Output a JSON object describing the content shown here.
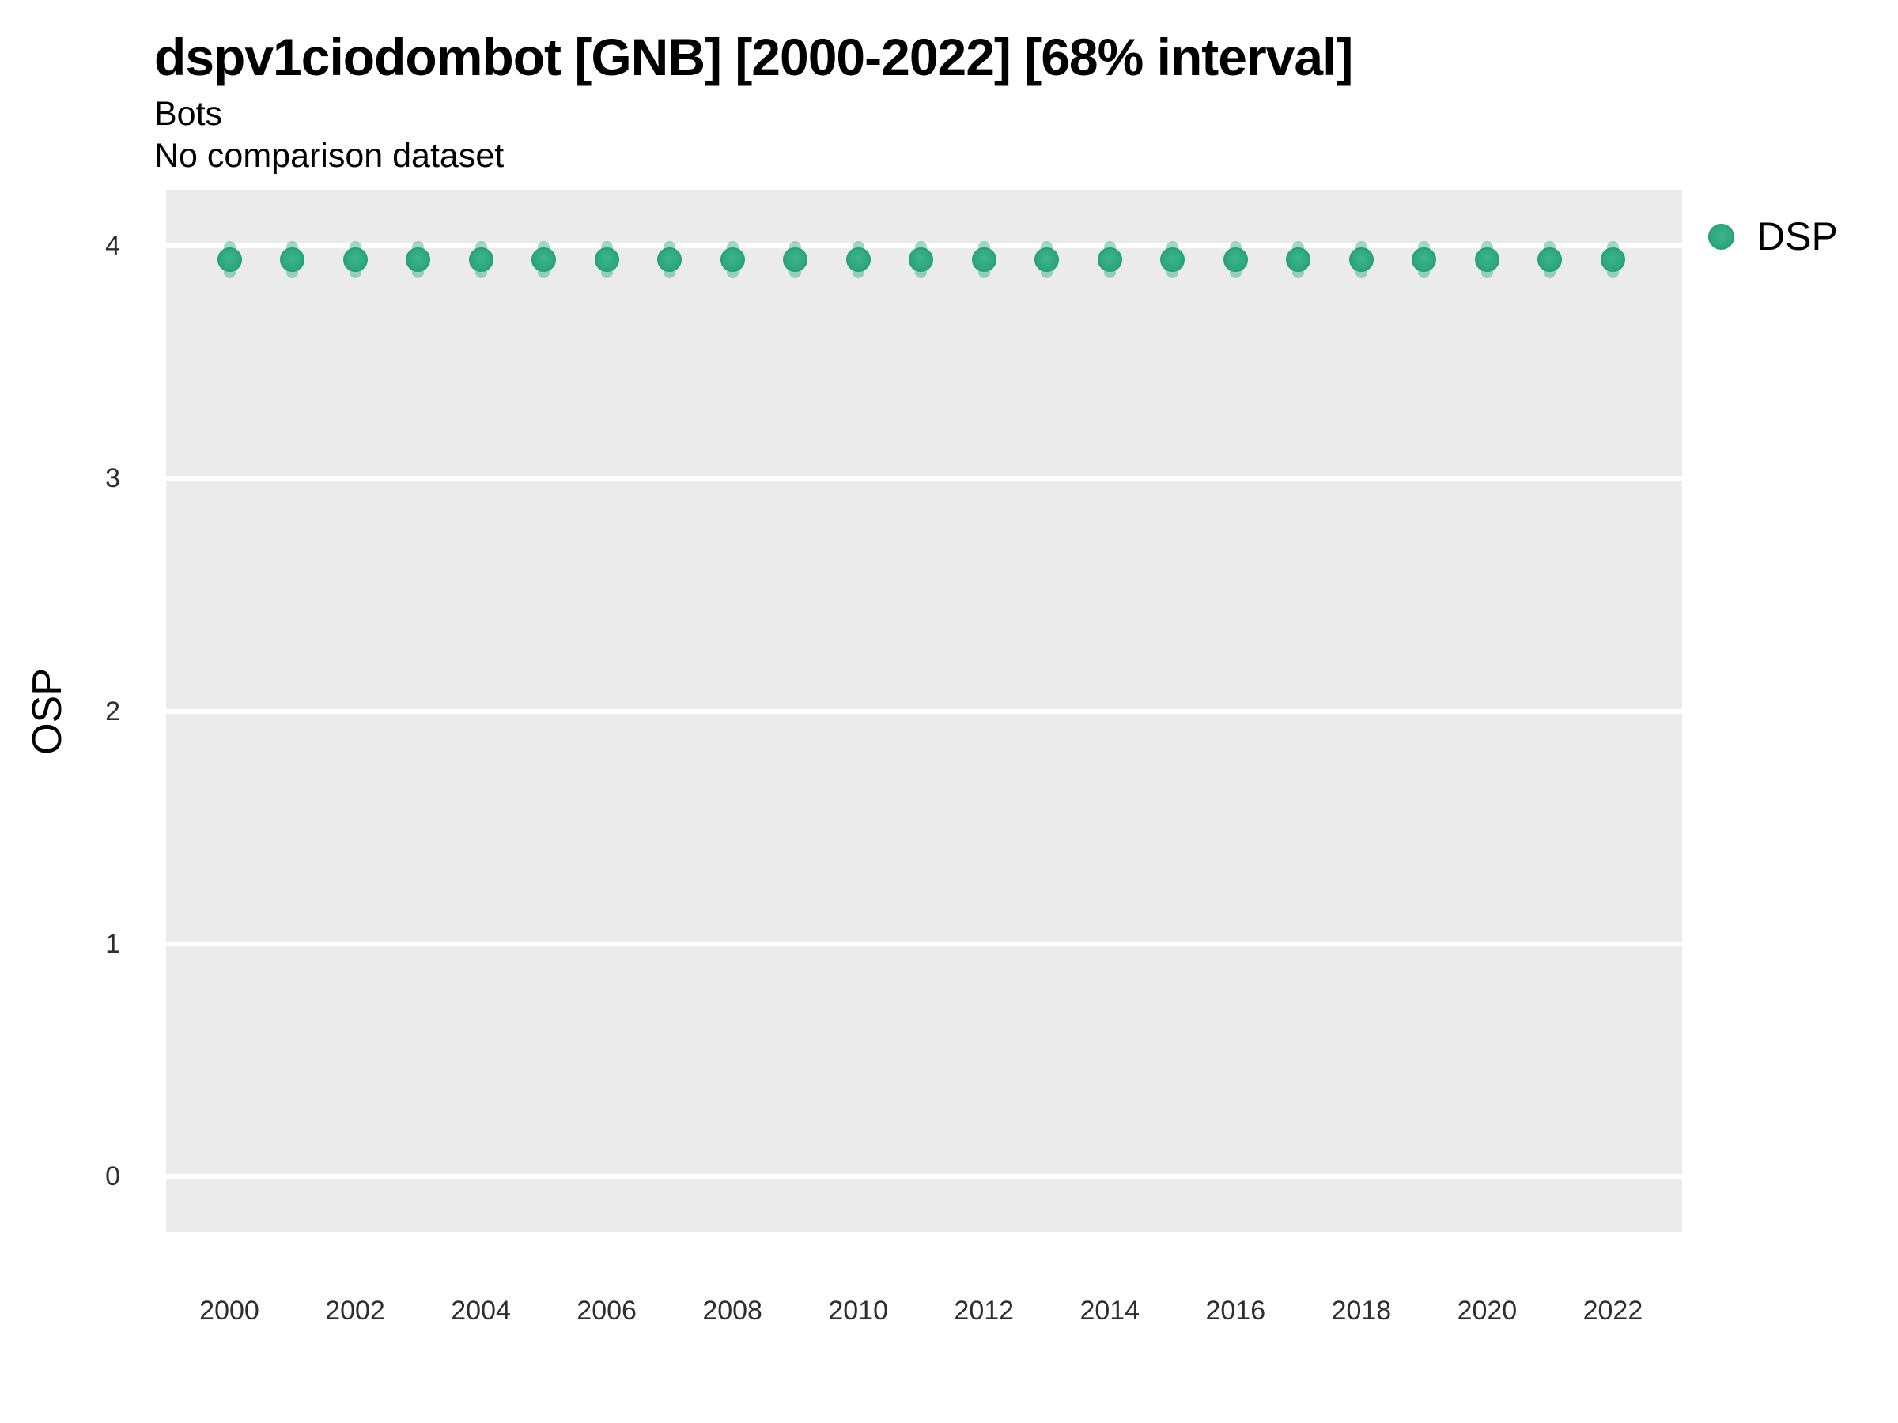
{
  "chart_data": {
    "type": "scatter",
    "title": "dspv1ciodombot [GNB] [2000-2022] [68% interval]",
    "subtitle": "Bots",
    "subtitle2": "No comparison dataset",
    "ylabel": "OSP",
    "xlabel": "",
    "interval_note": "68% interval",
    "legend": {
      "position": "right",
      "entries": [
        {
          "label": "DSP",
          "color": "#2faa81"
        }
      ]
    },
    "x": [
      2000,
      2001,
      2002,
      2003,
      2004,
      2005,
      2006,
      2007,
      2008,
      2009,
      2010,
      2011,
      2012,
      2013,
      2014,
      2015,
      2016,
      2017,
      2018,
      2019,
      2020,
      2021,
      2022
    ],
    "series": [
      {
        "name": "DSP",
        "values": [
          3.94,
          3.94,
          3.94,
          3.94,
          3.94,
          3.94,
          3.94,
          3.94,
          3.94,
          3.94,
          3.94,
          3.94,
          3.94,
          3.94,
          3.94,
          3.94,
          3.94,
          3.94,
          3.94,
          3.94,
          3.94,
          3.94,
          3.94
        ],
        "interval_low": [
          3.86,
          3.86,
          3.86,
          3.86,
          3.86,
          3.86,
          3.86,
          3.86,
          3.86,
          3.86,
          3.86,
          3.86,
          3.86,
          3.86,
          3.86,
          3.86,
          3.86,
          3.86,
          3.86,
          3.86,
          3.86,
          3.86,
          3.86
        ],
        "interval_high": [
          4.02,
          4.02,
          4.02,
          4.02,
          4.02,
          4.02,
          4.02,
          4.02,
          4.02,
          4.02,
          4.02,
          4.02,
          4.02,
          4.02,
          4.02,
          4.02,
          4.02,
          4.02,
          4.02,
          4.02,
          4.02,
          4.02,
          4.02
        ]
      }
    ],
    "xticks": [
      2000,
      2002,
      2004,
      2006,
      2008,
      2010,
      2012,
      2014,
      2016,
      2018,
      2020,
      2022
    ],
    "yticks": [
      0,
      1,
      2,
      3,
      4
    ],
    "ylim": [
      -0.24,
      4.24
    ],
    "xlim": [
      1999,
      2023.1
    ],
    "grid": "horizontal major gridlines, white on grey panel, no vertical gridlines",
    "legend_position": "right",
    "colors": {
      "point": "#2faa81",
      "point_border": "#26a076",
      "interval": "rgba(47,170,129,0.45)",
      "panel_bg": "#ebebeb",
      "gridline": "#ffffff",
      "title_text": "#000000",
      "tick_text": "#2e2e2e"
    }
  }
}
